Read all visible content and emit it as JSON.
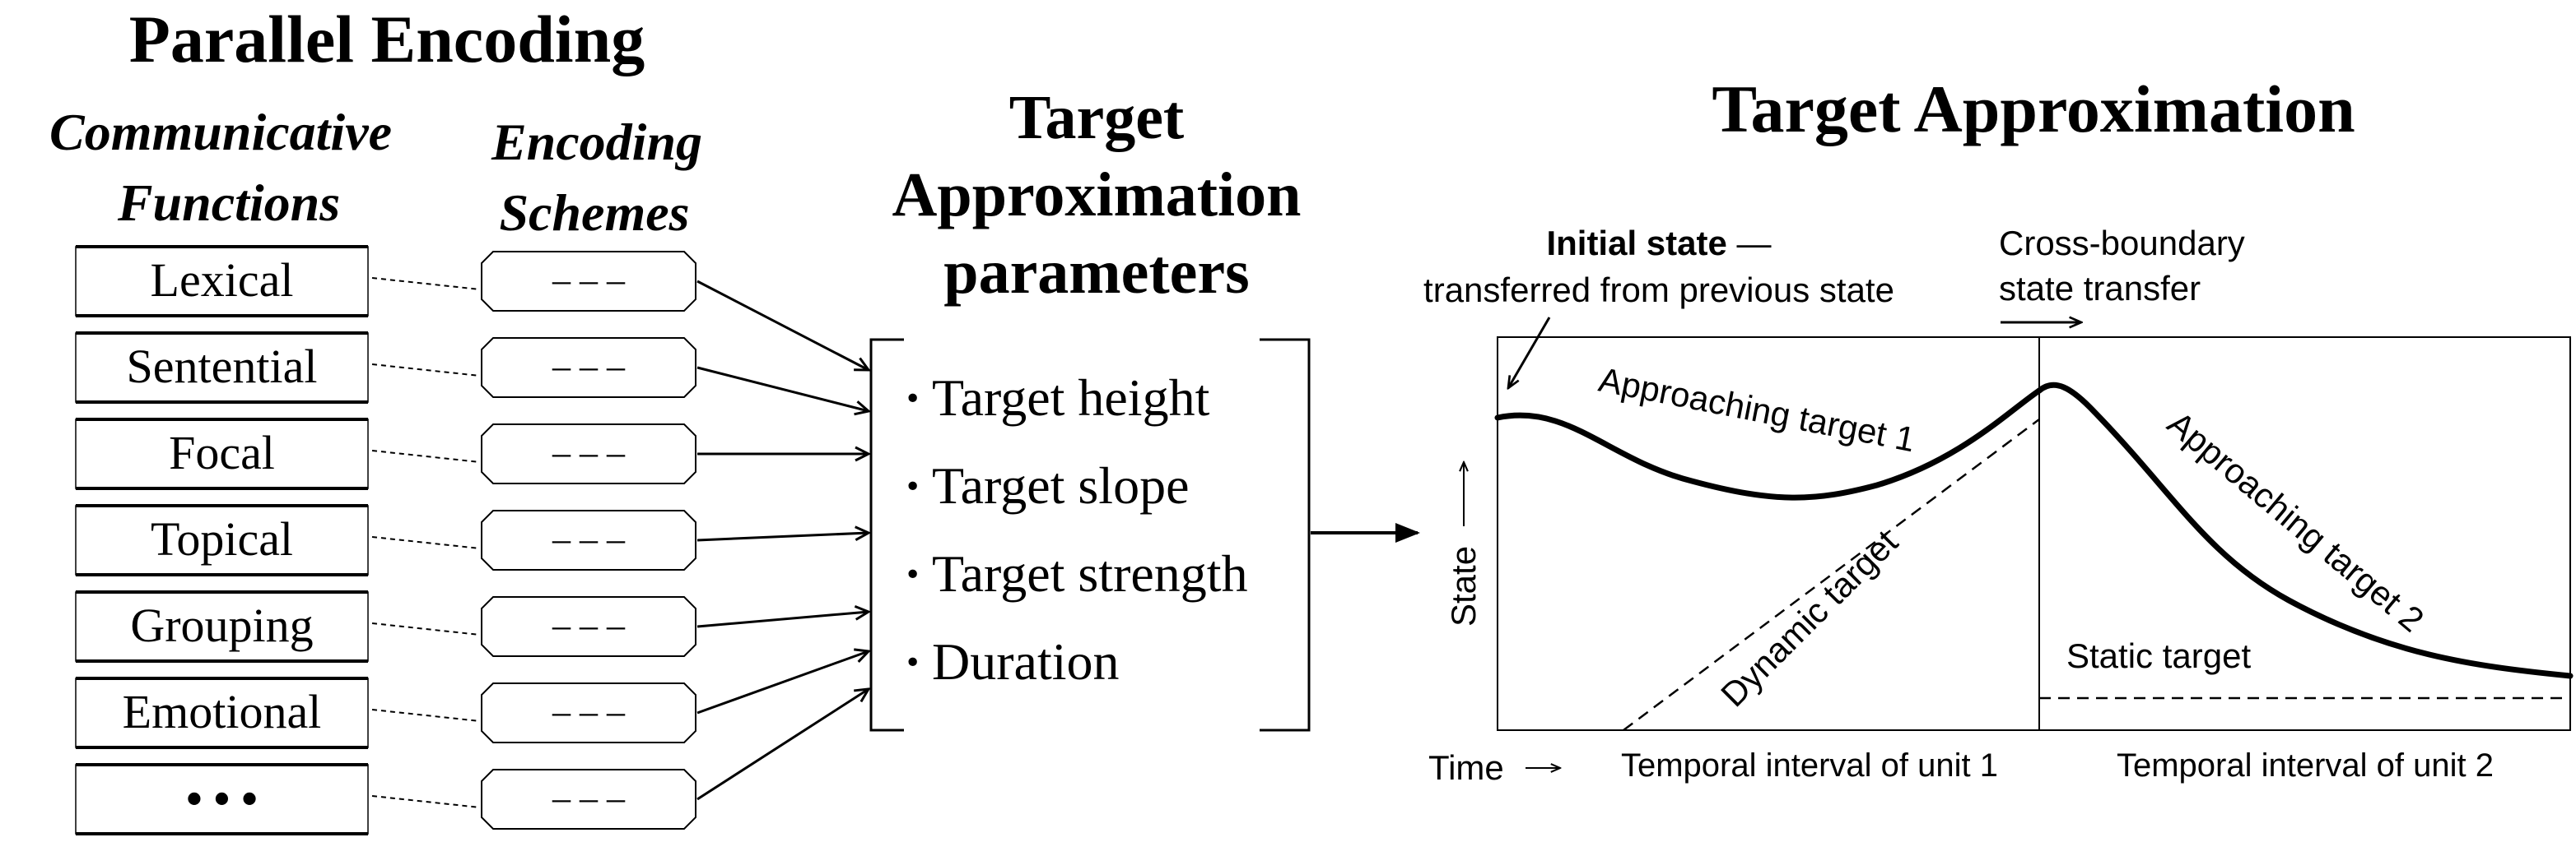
{
  "parallel_encoding": {
    "title": "Parallel Encoding",
    "functions_heading": [
      "Communicative",
      "Functions"
    ],
    "schemes_heading": [
      "Encoding",
      "Schemes"
    ],
    "functions": [
      "Lexical",
      "Sentential",
      "Focal",
      "Topical",
      "Grouping",
      "Emotional",
      "• • •"
    ],
    "scheme_placeholder": "– – –"
  },
  "ta_parameters": {
    "title": [
      "Target",
      "Approximation",
      "parameters"
    ],
    "items": [
      "Target height",
      "Target slope",
      "Target strength",
      "Duration"
    ],
    "bullet": "·"
  },
  "target_approximation": {
    "title": "Target Approximation",
    "initial_state_bold": "Initial state",
    "initial_state_dash": " —",
    "initial_state_sub": "transferred from previous state",
    "cross_boundary": [
      "Cross-boundary",
      "state transfer"
    ],
    "approaching_1": "Approaching target 1",
    "approaching_2": "Approaching target 2",
    "dynamic_target": "Dynamic target",
    "static_target": "Static target",
    "y_axis_label": "State",
    "x_axis_label": "Time",
    "unit_1_label": "Temporal interval of unit 1",
    "unit_2_label": "Temporal interval of unit 2"
  }
}
